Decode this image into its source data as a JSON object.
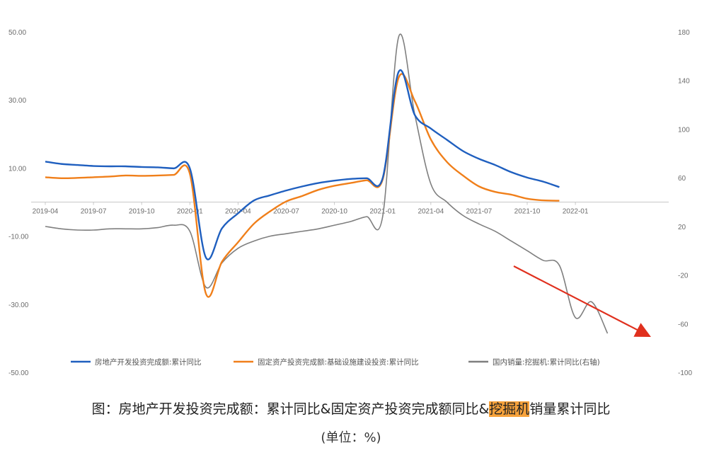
{
  "chart_data": {
    "type": "line",
    "x_ticks": [
      "2019-04",
      "2019-07",
      "2019-10",
      "2020-01",
      "2020-04",
      "2020-07",
      "2020-10",
      "2021-01",
      "2021-04",
      "2021-07",
      "2021-10",
      "2022-01"
    ],
    "y_left_ticks": [
      "50.00",
      "30.00",
      "10.00",
      "-10.00",
      "-30.00",
      "-50.00"
    ],
    "y_right_ticks": [
      "180",
      "140",
      "100",
      "60",
      "20",
      "-20",
      "-60",
      "-100"
    ],
    "ylim_left": [
      -50,
      50
    ],
    "ylim_right": [
      -100,
      180
    ],
    "grid": false,
    "legend_position": "bottom",
    "series": [
      {
        "name": "房地产开发投资完成额:累计同比",
        "axis": "left",
        "color": "#1f5fbf",
        "x": [
          "2019-04",
          "2019-05",
          "2019-06",
          "2019-07",
          "2019-08",
          "2019-09",
          "2019-10",
          "2019-11",
          "2019-12",
          "2020-01",
          "2020-02",
          "2020-03",
          "2020-04",
          "2020-05",
          "2020-06",
          "2020-07",
          "2020-08",
          "2020-09",
          "2020-10",
          "2020-11",
          "2020-12",
          "2021-01",
          "2021-02",
          "2021-03",
          "2021-04",
          "2021-05",
          "2021-06",
          "2021-07",
          "2021-08",
          "2021-09",
          "2021-10",
          "2021-11",
          "2021-12"
        ],
        "values": [
          11.9,
          11.2,
          10.9,
          10.6,
          10.5,
          10.5,
          10.3,
          10.2,
          9.9,
          9.9,
          -16.3,
          -7.7,
          -3.3,
          0.5,
          2.0,
          3.4,
          4.6,
          5.6,
          6.3,
          6.8,
          7.0,
          7.0,
          38.3,
          25.6,
          21.6,
          18.3,
          15.0,
          12.7,
          10.9,
          8.8,
          7.2,
          6.0,
          4.4
        ]
      },
      {
        "name": "固定资产投资完成额:基础设施建设投资:累计同比",
        "axis": "left",
        "color": "#f07f1a",
        "x": [
          "2019-04",
          "2019-05",
          "2019-06",
          "2019-07",
          "2019-08",
          "2019-09",
          "2019-10",
          "2019-11",
          "2019-12",
          "2020-01",
          "2020-02",
          "2020-03",
          "2020-04",
          "2020-05",
          "2020-06",
          "2020-07",
          "2020-08",
          "2020-09",
          "2020-10",
          "2020-11",
          "2020-12",
          "2021-01",
          "2021-02",
          "2021-03",
          "2021-04",
          "2021-05",
          "2021-06",
          "2021-07",
          "2021-08",
          "2021-09",
          "2021-10",
          "2021-11",
          "2021-12"
        ],
        "values": [
          7.3,
          7.0,
          7.1,
          7.3,
          7.5,
          7.8,
          7.7,
          7.8,
          8.0,
          8.3,
          -26.9,
          -17.5,
          -11.8,
          -6.3,
          -2.7,
          0.2,
          1.8,
          3.6,
          4.8,
          5.6,
          6.4,
          6.6,
          36.6,
          29.7,
          18.4,
          11.8,
          7.8,
          4.6,
          3.0,
          2.2,
          1.0,
          0.5,
          0.4
        ]
      },
      {
        "name": "国内销量:挖掘机:累计同比(右轴)",
        "axis": "right",
        "color": "#7f7f7f",
        "x": [
          "2019-04",
          "2019-05",
          "2019-06",
          "2019-07",
          "2019-08",
          "2019-09",
          "2019-10",
          "2019-11",
          "2019-12",
          "2020-01",
          "2020-02",
          "2020-03",
          "2020-04",
          "2020-05",
          "2020-06",
          "2020-07",
          "2020-08",
          "2020-09",
          "2020-10",
          "2020-11",
          "2020-12",
          "2021-01",
          "2021-02",
          "2021-03",
          "2021-04",
          "2021-05",
          "2021-06",
          "2021-07",
          "2021-08",
          "2021-09",
          "2021-10",
          "2021-11",
          "2021-12",
          "2022-01",
          "2022-02",
          "2022-03"
        ],
        "values": [
          20,
          18,
          17,
          17,
          18,
          18,
          18,
          19,
          21,
          16,
          -30,
          -10,
          2,
          8,
          12,
          14,
          16,
          18,
          21,
          24,
          28,
          28,
          176,
          112,
          55,
          40,
          29,
          22,
          16,
          8,
          0,
          -8,
          -12,
          -55,
          -42,
          -68
        ]
      }
    ],
    "annotation": "red arrow pointing down toward the excavator sales line"
  },
  "caption": {
    "before": "图：房地产开发投资完成额：累计同比&固定资产投资完成额同比&",
    "highlight": "挖掘机",
    "after": "销量累计同比"
  },
  "unit": "(单位：%)"
}
